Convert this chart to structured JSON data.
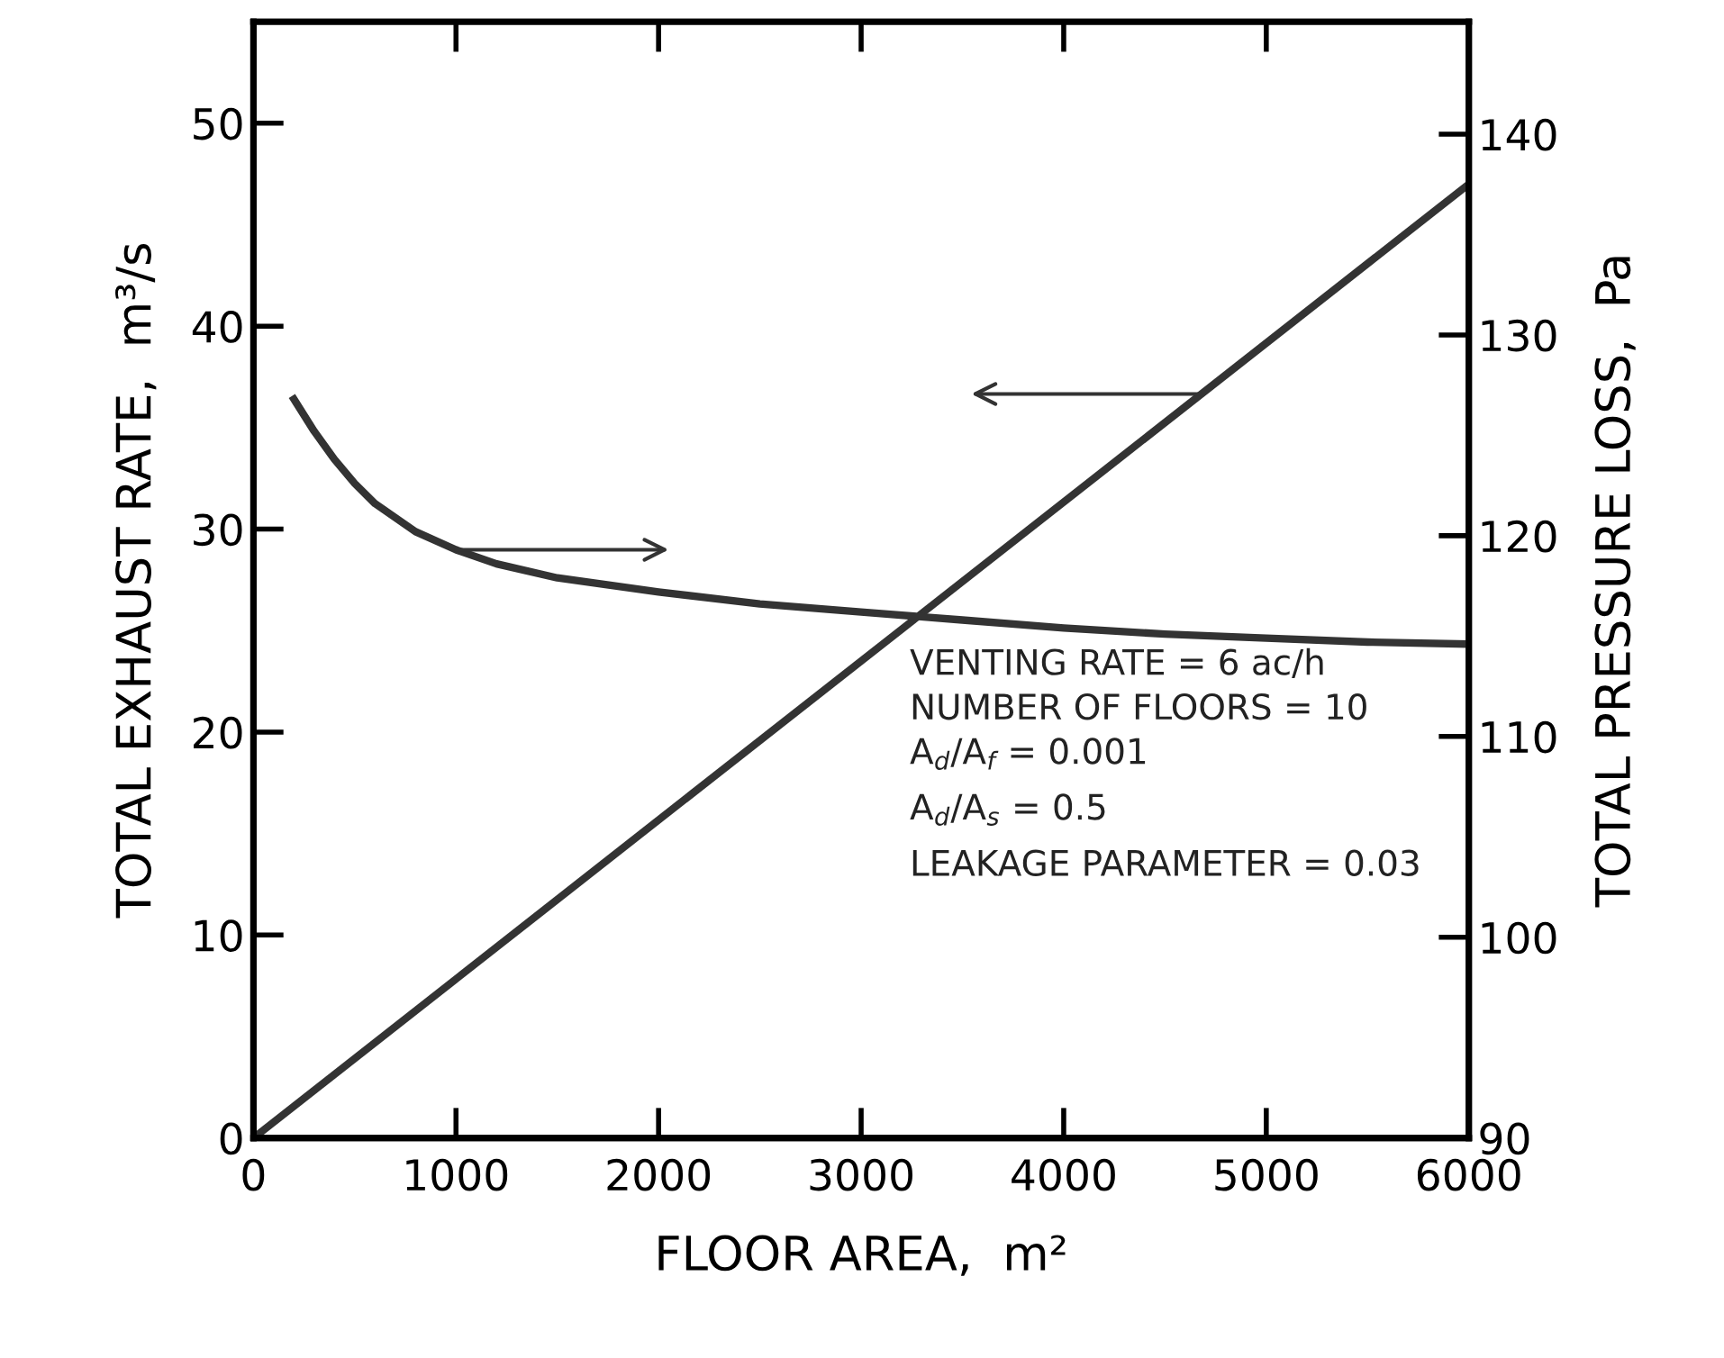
{
  "chart_data": {
    "type": "line",
    "xlabel": "FLOOR AREA,  m²",
    "ylabel": "TOTAL EXHAUST RATE,  m³/s",
    "y2label": "TOTAL PRESSURE LOSS,  Pa",
    "xlim": [
      0,
      6000
    ],
    "xticks": [
      0,
      1000,
      2000,
      3000,
      4000,
      5000,
      6000
    ],
    "ylim": [
      0,
      55
    ],
    "yticks": [
      0,
      10,
      20,
      30,
      40,
      50
    ],
    "y2lim": [
      90,
      145.6
    ],
    "y2ticks": [
      90,
      100,
      110,
      120,
      130,
      140
    ],
    "grid": false,
    "legend": false,
    "marker": "none",
    "line_style": "solid",
    "series": [
      {
        "color": "#333333",
        "x": [
          0,
          6000
        ],
        "values": [
          0,
          47
        ]
      },
      {
        "color": "#333333",
        "axis": "y2",
        "x": [
          200,
          300,
          400,
          500,
          600,
          800,
          1000,
          1200,
          1500,
          2000,
          2500,
          3000,
          3500,
          4000,
          4500,
          5000,
          5500,
          6000
        ],
        "values": [
          126.8,
          125.2,
          123.8,
          122.6,
          121.6,
          120.2,
          119.3,
          118.6,
          117.9,
          117.2,
          116.6,
          116.2,
          115.8,
          115.4,
          115.1,
          114.9,
          114.7,
          114.6
        ]
      }
    ],
    "annotations": [
      "VENTING RATE = 6 ac/h",
      "NUMBER OF FLOORS = 10",
      "A$_{d}$/A$_{f}$ = 0.001",
      "A$_{d}$/A$_{s}$ = 0.5",
      "LEAKAGE PARAMETER = 0.03"
    ]
  }
}
